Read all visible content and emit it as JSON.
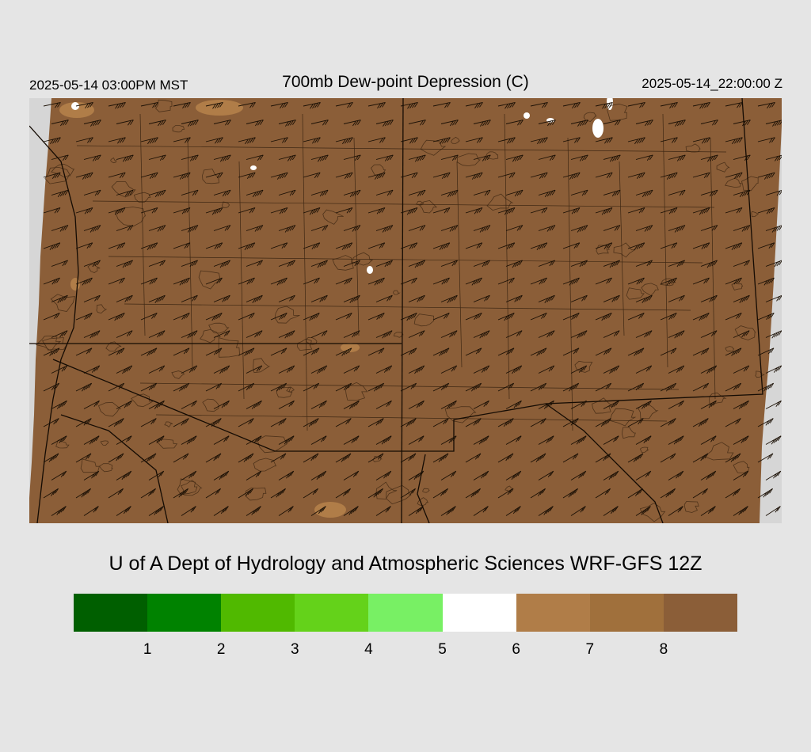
{
  "header": {
    "local_time": "2025-05-14 03:00PM MST",
    "title": "700mb Dew-point Depression (C)",
    "utc_time": "2025-05-14_22:00:00 Z"
  },
  "map": {
    "fill_color": "#8b5e38",
    "light_patch_color": "#b07d48",
    "moist_patch_color": "#ffffff",
    "out_of_domain_color": "#d6d6d6",
    "line_color": "#2b1a0a",
    "dominant_dewpoint_depression_class": "above 8",
    "wind_barb_icon": "wind-barb-icon"
  },
  "footer": {
    "credit": "U of A Dept of Hydrology and Atmospheric Sciences WRF-GFS 12Z"
  },
  "colorbar": {
    "colors": [
      "#005f00",
      "#008200",
      "#50b900",
      "#64d21a",
      "#78f064",
      "#ffffff",
      "#b07d48",
      "#a0703c",
      "#8b5e38"
    ],
    "tick_labels": [
      "1",
      "2",
      "3",
      "4",
      "5",
      "6",
      "7",
      "8"
    ]
  }
}
